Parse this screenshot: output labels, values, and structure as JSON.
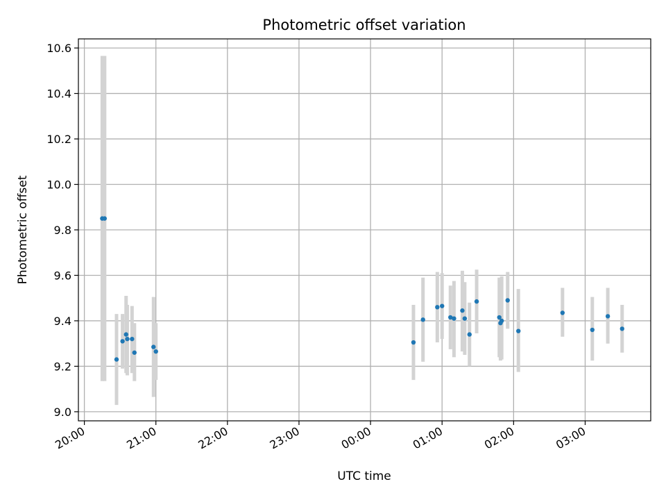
{
  "chart_data": {
    "type": "scatter",
    "title": "Photometric offset variation",
    "xlabel": "UTC time",
    "ylabel": "Photometric offset",
    "x_unit": "UTC hh:mm",
    "x_ticks": [
      "20:00",
      "21:00",
      "22:00",
      "23:00",
      "00:00",
      "01:00",
      "02:00",
      "03:00"
    ],
    "y_ticks": [
      "9.0",
      "9.2",
      "9.4",
      "9.6",
      "9.8",
      "10.0",
      "10.2",
      "10.4",
      "10.6"
    ],
    "xlim": [
      "19:55",
      "03:55"
    ],
    "ylim": [
      8.96,
      10.64
    ],
    "grid": true,
    "marker_color": "#1f77b4",
    "errorbar_color": "#d3d3d3",
    "series": [
      {
        "points": [
          {
            "x": "20:15",
            "y": 9.85,
            "lo": 9.135,
            "hi": 10.565
          },
          {
            "x": "20:17",
            "y": 9.85,
            "lo": 9.135,
            "hi": 10.565
          },
          {
            "x": "20:27",
            "y": 9.23,
            "lo": 9.03,
            "hi": 9.43
          },
          {
            "x": "20:32",
            "y": 9.31,
            "lo": 9.19,
            "hi": 9.43
          },
          {
            "x": "20:35",
            "y": 9.34,
            "lo": 9.17,
            "hi": 9.51
          },
          {
            "x": "20:36",
            "y": 9.32,
            "lo": 9.16,
            "hi": 9.47
          },
          {
            "x": "20:40",
            "y": 9.32,
            "lo": 9.17,
            "hi": 9.465
          },
          {
            "x": "20:42",
            "y": 9.26,
            "lo": 9.135,
            "hi": 9.39
          },
          {
            "x": "20:58",
            "y": 9.285,
            "lo": 9.065,
            "hi": 9.505
          },
          {
            "x": "21:00",
            "y": 9.265,
            "lo": 9.14,
            "hi": 9.39
          },
          {
            "x": "00:36",
            "y": 9.305,
            "lo": 9.14,
            "hi": 9.47
          },
          {
            "x": "00:44",
            "y": 9.405,
            "lo": 9.22,
            "hi": 9.59
          },
          {
            "x": "00:56",
            "y": 9.46,
            "lo": 9.305,
            "hi": 9.615
          },
          {
            "x": "01:00",
            "y": 9.465,
            "lo": 9.32,
            "hi": 9.61
          },
          {
            "x": "01:07",
            "y": 9.415,
            "lo": 9.275,
            "hi": 9.555
          },
          {
            "x": "01:10",
            "y": 9.41,
            "lo": 9.24,
            "hi": 9.575
          },
          {
            "x": "01:17",
            "y": 9.445,
            "lo": 9.265,
            "hi": 9.62
          },
          {
            "x": "01:19",
            "y": 9.41,
            "lo": 9.25,
            "hi": 9.57
          },
          {
            "x": "01:23",
            "y": 9.34,
            "lo": 9.2,
            "hi": 9.48
          },
          {
            "x": "01:29",
            "y": 9.485,
            "lo": 9.345,
            "hi": 9.625
          },
          {
            "x": "01:48",
            "y": 9.415,
            "lo": 9.24,
            "hi": 9.59
          },
          {
            "x": "01:49",
            "y": 9.39,
            "lo": 9.225,
            "hi": 9.585
          },
          {
            "x": "01:50",
            "y": 9.4,
            "lo": 9.23,
            "hi": 9.595
          },
          {
            "x": "01:55",
            "y": 9.49,
            "lo": 9.365,
            "hi": 9.615
          },
          {
            "x": "02:04",
            "y": 9.355,
            "lo": 9.175,
            "hi": 9.54
          },
          {
            "x": "02:41",
            "y": 9.435,
            "lo": 9.33,
            "hi": 9.545
          },
          {
            "x": "03:06",
            "y": 9.36,
            "lo": 9.225,
            "hi": 9.505
          },
          {
            "x": "03:19",
            "y": 9.42,
            "lo": 9.3,
            "hi": 9.545
          },
          {
            "x": "03:31",
            "y": 9.365,
            "lo": 9.26,
            "hi": 9.47
          }
        ]
      }
    ]
  }
}
